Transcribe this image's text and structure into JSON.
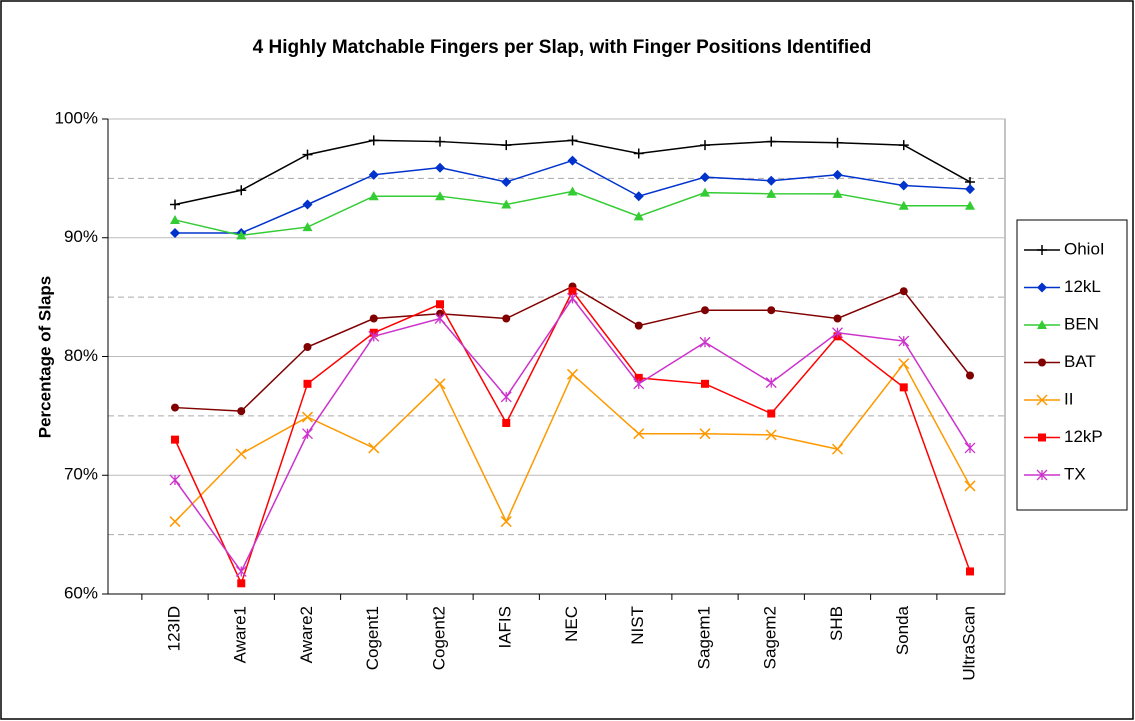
{
  "chart_data": {
    "type": "line",
    "title": "4 Highly Matchable Fingers per Slap, with Finger Positions Identified",
    "y_label": "Percentage of Slaps",
    "categories": [
      "123ID",
      "Aware1",
      "Aware2",
      "Cogent1",
      "Cogent2",
      "IAFIS",
      "NEC",
      "NIST",
      "Sagem1",
      "Sagem2",
      "SHB",
      "Sonda",
      "UltraScan"
    ],
    "ylim": [
      60,
      100
    ],
    "yticks": [
      {
        "value": 60,
        "label": "60%"
      },
      {
        "value": 70,
        "label": "70%"
      },
      {
        "value": 80,
        "label": "80%"
      },
      {
        "value": 90,
        "label": "90%"
      },
      {
        "value": 100,
        "label": "100%"
      }
    ],
    "minor_yticks": [
      65,
      75,
      85,
      95
    ],
    "grid": true,
    "legend": "right",
    "series": [
      {
        "name": "OhioI",
        "color": "#000000",
        "marker": "plus",
        "values": [
          92.8,
          94.0,
          97.0,
          98.2,
          98.1,
          97.8,
          98.2,
          97.1,
          97.8,
          98.1,
          98.0,
          97.8,
          94.7
        ]
      },
      {
        "name": "12kL",
        "color": "#0033cc",
        "marker": "diamond",
        "values": [
          90.4,
          90.4,
          92.8,
          95.3,
          95.9,
          94.7,
          96.5,
          93.5,
          95.1,
          94.8,
          95.3,
          94.4,
          94.1
        ]
      },
      {
        "name": "BEN",
        "color": "#33cc33",
        "marker": "triangle",
        "values": [
          91.5,
          90.2,
          90.9,
          93.5,
          93.5,
          92.8,
          93.9,
          91.8,
          93.8,
          93.7,
          93.7,
          92.7,
          92.7
        ]
      },
      {
        "name": "BAT",
        "color": "#800000",
        "marker": "circle",
        "values": [
          75.7,
          75.4,
          80.8,
          83.2,
          83.6,
          83.2,
          85.9,
          82.6,
          83.9,
          83.9,
          83.2,
          85.5,
          78.4
        ]
      },
      {
        "name": "II",
        "color": "#ff9900",
        "marker": "x",
        "values": [
          66.1,
          71.8,
          74.9,
          72.3,
          77.7,
          66.1,
          78.5,
          73.5,
          73.5,
          73.4,
          72.2,
          79.4,
          69.1
        ]
      },
      {
        "name": "12kP",
        "color": "#ff0000",
        "marker": "square",
        "values": [
          73.0,
          60.9,
          77.7,
          82.0,
          84.4,
          74.4,
          85.5,
          78.2,
          77.7,
          75.2,
          81.7,
          77.4,
          61.9
        ]
      },
      {
        "name": "TX",
        "color": "#cc33cc",
        "marker": "asterisk",
        "values": [
          69.6,
          61.9,
          73.5,
          81.7,
          83.2,
          76.6,
          84.9,
          77.7,
          81.2,
          77.8,
          82.0,
          81.3,
          72.3
        ]
      }
    ]
  }
}
